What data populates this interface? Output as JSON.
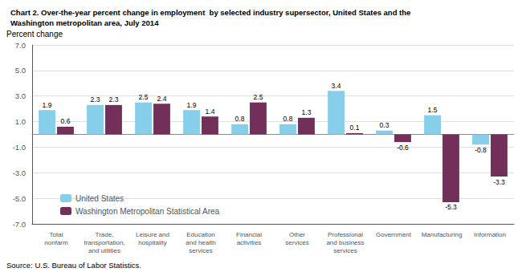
{
  "chart_data": {
    "type": "bar",
    "title": "Chart 2. Over-the-year percent change in employment  by selected industry supersector, United States and the\nWashington metropolitan area, July 2014",
    "ylabel": "Percent change",
    "annotations": [
      "Source: U.S. Bureau of Labor Statistics."
    ],
    "categories": [
      "Total\nnonfarm",
      "Trade,\ntransportation,\nand utilities",
      "Leisure and\nhospitality",
      "Education\nand health\nservices",
      "Financial\nactivities",
      "Other\nservices",
      "Professional\nand business\nservices",
      "Government",
      "Manufacturing",
      "Information"
    ],
    "series": [
      {
        "name": "United States",
        "color": "#87CEEB",
        "values": [
          1.9,
          2.3,
          2.5,
          1.9,
          0.8,
          0.8,
          3.4,
          0.3,
          1.5,
          -0.8
        ]
      },
      {
        "name": "Washington Metropolitan Statistical Area",
        "color": "#722F5A",
        "values": [
          0.6,
          2.3,
          2.4,
          1.4,
          2.5,
          1.3,
          0.1,
          -0.6,
          -5.3,
          -3.3
        ]
      }
    ],
    "ylim": [
      -7.0,
      7.0
    ],
    "yticks": [
      {
        "value": -7.0,
        "label": "-7.0"
      },
      {
        "value": -5.0,
        "label": "-5.0"
      },
      {
        "value": -3.0,
        "label": "-3.0"
      },
      {
        "value": -1.0,
        "label": "-1.0"
      },
      {
        "value": 1.0,
        "label": "1.0"
      },
      {
        "value": 3.0,
        "label": "3.0"
      },
      {
        "value": 5.0,
        "label": "5.0"
      },
      {
        "value": 7.0,
        "label": "7.0"
      }
    ],
    "grid": true,
    "legend": "lower left",
    "data_labels": true
  }
}
